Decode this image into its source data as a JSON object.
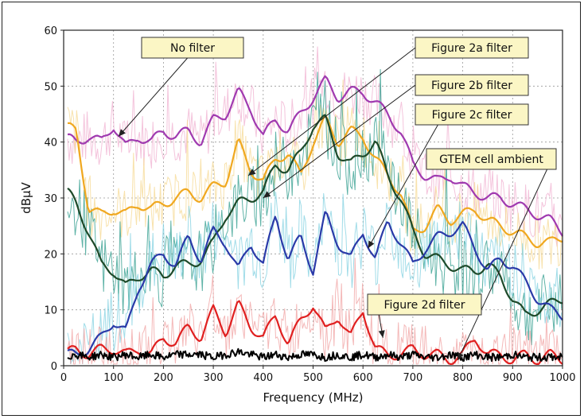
{
  "chart_data": {
    "type": "line",
    "xlabel": "Frequency (MHz)",
    "ylabel": "dBμV",
    "xlim": [
      0,
      1000
    ],
    "ylim": [
      0,
      60
    ],
    "xticks": [
      0,
      100,
      200,
      300,
      400,
      500,
      600,
      700,
      800,
      900,
      1000
    ],
    "yticks": [
      0,
      10,
      20,
      30,
      40,
      50,
      60
    ],
    "grid": true,
    "series": [
      {
        "name": "No filter",
        "color": "#a03ab0",
        "raw_color": "#f0b0d0",
        "x": [
          0,
          25,
          50,
          75,
          100,
          125,
          150,
          175,
          200,
          225,
          250,
          275,
          300,
          325,
          350,
          375,
          400,
          425,
          450,
          475,
          500,
          525,
          550,
          575,
          600,
          625,
          650,
          675,
          700,
          725,
          750,
          775,
          800,
          825,
          850,
          875,
          900,
          925,
          950,
          975,
          1000
        ],
        "values": [
          41,
          40,
          41,
          40,
          43,
          39,
          41,
          40,
          42,
          41,
          42,
          40,
          44,
          45,
          49,
          46,
          41,
          44,
          42,
          45,
          48,
          51,
          48,
          49,
          49,
          47,
          45,
          42,
          36,
          34,
          33,
          34,
          32,
          31,
          30,
          30,
          29,
          28,
          27,
          26,
          24
        ]
      },
      {
        "name": "Figure 2a filter",
        "color": "#f0a820",
        "raw_color": "#f5d890",
        "x": [
          0,
          25,
          50,
          75,
          100,
          125,
          150,
          175,
          200,
          225,
          250,
          275,
          300,
          325,
          350,
          375,
          400,
          425,
          450,
          475,
          500,
          525,
          550,
          575,
          600,
          625,
          650,
          675,
          700,
          725,
          750,
          775,
          800,
          825,
          850,
          875,
          900,
          925,
          950,
          975,
          1000
        ],
        "values": [
          43,
          42,
          28,
          27,
          28,
          27,
          29,
          28,
          29,
          30,
          31,
          30,
          32,
          33,
          40,
          35,
          33,
          37,
          38,
          34,
          40,
          44,
          40,
          42,
          41,
          37,
          34,
          31,
          24,
          25,
          28,
          26,
          27,
          28,
          26,
          25,
          24,
          23,
          22,
          22,
          23
        ]
      },
      {
        "name": "Figure 2b filter",
        "color": "#1e4a2a",
        "raw_color": "#2a9a8a",
        "x": [
          0,
          25,
          50,
          75,
          100,
          125,
          150,
          175,
          200,
          225,
          250,
          275,
          300,
          325,
          350,
          375,
          400,
          425,
          450,
          475,
          500,
          525,
          550,
          575,
          600,
          625,
          650,
          675,
          700,
          725,
          750,
          775,
          800,
          825,
          850,
          875,
          900,
          925,
          950,
          975,
          1000
        ],
        "values": [
          32,
          29,
          24,
          18,
          17,
          14,
          16,
          17,
          16,
          18,
          18,
          19,
          22,
          27,
          29,
          30,
          31,
          36,
          35,
          38,
          43,
          44,
          38,
          36,
          38,
          40,
          34,
          30,
          24,
          20,
          19,
          18,
          17,
          17,
          18,
          16,
          12,
          9,
          10,
          11,
          12
        ]
      },
      {
        "name": "Figure 2c filter",
        "color": "#2a3aa8",
        "raw_color": "#80d0e0",
        "x": [
          0,
          25,
          50,
          75,
          100,
          125,
          150,
          175,
          200,
          225,
          250,
          275,
          300,
          325,
          350,
          375,
          400,
          425,
          450,
          475,
          500,
          525,
          550,
          575,
          600,
          625,
          650,
          675,
          700,
          725,
          750,
          775,
          800,
          825,
          850,
          875,
          900,
          925,
          950,
          975,
          1000
        ],
        "values": [
          2,
          2,
          3,
          5,
          8,
          6,
          14,
          18,
          20,
          18,
          23,
          19,
          24,
          22,
          17,
          22,
          18,
          27,
          19,
          23,
          17,
          27,
          22,
          19,
          24,
          19,
          26,
          22,
          18,
          21,
          23,
          24,
          25,
          21,
          17,
          19,
          18,
          15,
          12,
          10,
          9
        ]
      },
      {
        "name": "Figure 2d filter",
        "color": "#e02020",
        "raw_color": "#f0a0a0",
        "x": [
          0,
          25,
          50,
          75,
          100,
          125,
          150,
          175,
          200,
          225,
          250,
          275,
          300,
          325,
          350,
          375,
          400,
          425,
          450,
          475,
          500,
          525,
          550,
          575,
          600,
          625,
          650,
          675,
          700,
          725,
          750,
          775,
          800,
          825,
          850,
          875,
          900,
          925,
          950,
          975,
          1000
        ],
        "values": [
          2,
          3,
          2,
          3,
          3,
          2,
          3,
          2,
          5,
          4,
          7,
          5,
          10,
          6,
          11,
          7,
          5,
          9,
          4,
          8,
          11,
          6,
          9,
          5,
          10,
          3,
          2,
          2,
          3,
          2,
          2,
          1,
          2,
          5,
          2,
          2,
          1,
          2,
          1,
          2,
          1
        ]
      },
      {
        "name": "GTEM cell ambient",
        "color": "#000000",
        "raw_color": "#000000",
        "x": [
          0,
          25,
          50,
          75,
          100,
          125,
          150,
          175,
          200,
          225,
          250,
          275,
          300,
          325,
          350,
          375,
          400,
          425,
          450,
          475,
          500,
          525,
          550,
          575,
          600,
          625,
          650,
          675,
          700,
          725,
          750,
          775,
          800,
          825,
          850,
          875,
          900,
          925,
          950,
          975,
          1000
        ],
        "values": [
          1.5,
          2,
          1.5,
          2,
          1.5,
          2,
          1.5,
          2,
          1.5,
          2,
          2,
          2,
          1.5,
          2,
          2.5,
          2,
          1.5,
          2,
          1.5,
          2,
          2,
          1.5,
          2,
          1.5,
          2,
          1.5,
          2,
          1.5,
          2,
          1.5,
          1.5,
          2,
          1.5,
          2,
          1.5,
          1.5,
          2,
          1.5,
          1.5,
          1.5,
          1.5
        ]
      }
    ],
    "annotations": [
      {
        "text": "No filter",
        "target_series": "No filter",
        "point": [
          110,
          41
        ]
      },
      {
        "text": "Figure 2a filter",
        "target_series": "Figure 2a filter",
        "point": [
          370,
          34
        ]
      },
      {
        "text": "Figure 2b filter",
        "target_series": "Figure 2b filter",
        "point": [
          400,
          30
        ]
      },
      {
        "text": "Figure 2c filter",
        "target_series": "Figure 2c filter",
        "point": [
          610,
          21
        ]
      },
      {
        "text": "GTEM cell ambient",
        "target_series": "GTEM cell ambient",
        "point": [
          790,
          1
        ]
      },
      {
        "text": "Figure 2d filter",
        "target_series": "Figure 2d filter",
        "point": [
          640,
          5
        ]
      }
    ]
  }
}
